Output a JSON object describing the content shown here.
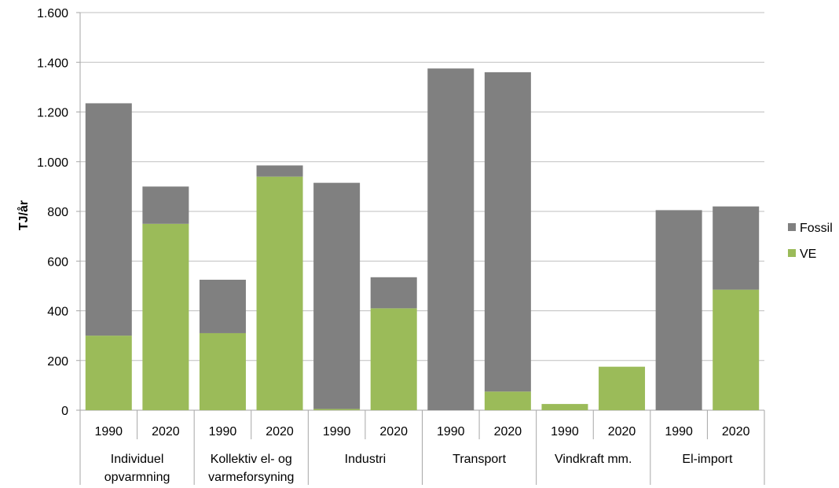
{
  "chart_data": {
    "type": "bar",
    "stacked": true,
    "title": "",
    "xlabel": "",
    "ylabel": "TJ/år",
    "ylim": [
      0,
      1600
    ],
    "yticks": [
      0,
      200,
      400,
      600,
      800,
      1000,
      1200,
      1400,
      1600
    ],
    "ytick_labels": [
      "0",
      "200",
      "400",
      "600",
      "800",
      "1.000",
      "1.200",
      "1.400",
      "1.600"
    ],
    "grid": true,
    "legend_position": "right",
    "groups": [
      {
        "label_lines": [
          "Individuel",
          "opvarmning"
        ],
        "years": [
          "1990",
          "2020"
        ]
      },
      {
        "label_lines": [
          "Kollektiv el- og",
          "varmeforsyning"
        ],
        "years": [
          "1990",
          "2020"
        ]
      },
      {
        "label_lines": [
          "Industri"
        ],
        "years": [
          "1990",
          "2020"
        ]
      },
      {
        "label_lines": [
          "Transport"
        ],
        "years": [
          "1990",
          "2020"
        ]
      },
      {
        "label_lines": [
          "Vindkraft mm."
        ],
        "years": [
          "1990",
          "2020"
        ]
      },
      {
        "label_lines": [
          "El-import"
        ],
        "years": [
          "1990",
          "2020"
        ]
      }
    ],
    "series": [
      {
        "name": "VE",
        "color": "#9BBB59",
        "values": [
          300,
          750,
          310,
          940,
          5,
          410,
          0,
          75,
          25,
          175,
          0,
          485
        ]
      },
      {
        "name": "Fossil",
        "color": "#808080",
        "values": [
          935,
          150,
          215,
          45,
          910,
          125,
          1375,
          1285,
          0,
          0,
          805,
          335
        ]
      }
    ],
    "legend": [
      {
        "name": "Fossil",
        "color": "#808080"
      },
      {
        "name": "VE",
        "color": "#9BBB59"
      }
    ]
  }
}
